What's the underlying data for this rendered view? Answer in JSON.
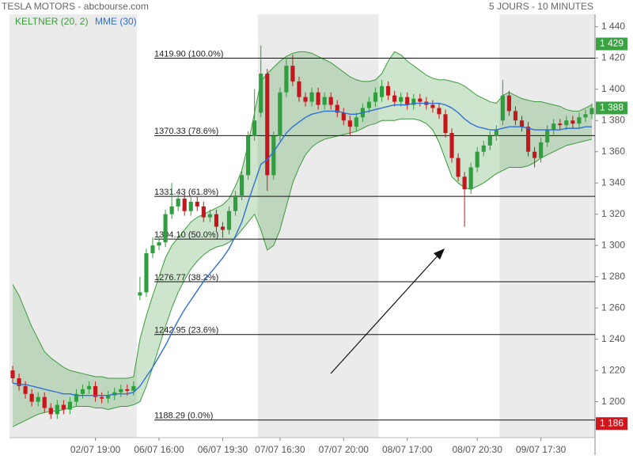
{
  "chart_data": {
    "type": "candlestick",
    "title": "TESLA MOTORS - abcbourse.com",
    "subtitle": "5 JOURS - 10 MINUTES",
    "categories": [
      null,
      null,
      null,
      null,
      null,
      null,
      null,
      null,
      null,
      null,
      null,
      null,
      null,
      "02/07 19:00",
      null,
      null,
      null,
      null,
      null,
      null,
      null,
      null,
      null,
      "06/07 16:00",
      null,
      null,
      null,
      null,
      null,
      null,
      null,
      null,
      null,
      "06/07 19:30",
      null,
      null,
      null,
      null,
      null,
      null,
      null,
      null,
      "07/07 16:30",
      null,
      null,
      null,
      null,
      null,
      null,
      null,
      null,
      null,
      "07/07 20:00",
      null,
      null,
      null,
      null,
      null,
      null,
      null,
      null,
      null,
      "08/07 17:00",
      null,
      null,
      null,
      null,
      null,
      null,
      null,
      null,
      null,
      null,
      "08/07 20:30",
      null,
      null,
      null,
      null,
      null,
      null,
      null,
      null,
      null,
      "09/07 17:30",
      null,
      null,
      null,
      null,
      null,
      null,
      null,
      null
    ],
    "candles": {
      "up_color": "#2e9e3e",
      "down_color": "#c4161c",
      "open": [
        1220,
        1215,
        1210,
        1205,
        1200,
        1203,
        1196,
        1192,
        1198,
        1195,
        1200,
        1205,
        1208,
        1210,
        1203,
        1202,
        1204,
        1206,
        1208,
        1207,
        1268,
        1270,
        1295,
        1300,
        1302,
        1320,
        1325,
        1330,
        1322,
        1328,
        1325,
        1318,
        1320,
        1312,
        1310,
        1322,
        1332,
        1345,
        1370,
        1385,
        1410,
        1345,
        1370,
        1398,
        1415,
        1405,
        1395,
        1392,
        1398,
        1390,
        1395,
        1390,
        1385,
        1380,
        1376,
        1382,
        1388,
        1392,
        1395,
        1402,
        1396,
        1392,
        1395,
        1390,
        1394,
        1392,
        1390,
        1388,
        1384,
        1372,
        1356,
        1344,
        1336,
        1350,
        1360,
        1364,
        1370,
        1380,
        1396,
        1386,
        1380,
        1376,
        1360,
        1356,
        1366,
        1374,
        1378,
        1377,
        1380,
        1378,
        1382,
        1384
      ],
      "high": [
        1223,
        1218,
        1213,
        1208,
        1206,
        1206,
        1199,
        1201,
        1201,
        1203,
        1208,
        1211,
        1213,
        1213,
        1206,
        1207,
        1209,
        1211,
        1211,
        1213,
        1280,
        1298,
        1305,
        1306,
        1323,
        1340,
        1333,
        1333,
        1331,
        1331,
        1328,
        1323,
        1323,
        1315,
        1325,
        1335,
        1348,
        1373,
        1400,
        1428,
        1413,
        1373,
        1401,
        1420,
        1422,
        1408,
        1398,
        1401,
        1401,
        1398,
        1398,
        1393,
        1388,
        1383,
        1385,
        1391,
        1395,
        1401,
        1406,
        1405,
        1399,
        1398,
        1398,
        1397,
        1397,
        1395,
        1393,
        1391,
        1387,
        1375,
        1359,
        1347,
        1353,
        1363,
        1367,
        1373,
        1377,
        1406,
        1399,
        1389,
        1383,
        1379,
        1363,
        1369,
        1377,
        1381,
        1381,
        1383,
        1383,
        1385,
        1387,
        1391
      ],
      "low": [
        1212,
        1207,
        1202,
        1197,
        1197,
        1193,
        1189,
        1189,
        1192,
        1192,
        1197,
        1202,
        1205,
        1200,
        1199,
        1199,
        1201,
        1203,
        1204,
        1204,
        1265,
        1267,
        1292,
        1297,
        1299,
        1317,
        1322,
        1319,
        1319,
        1322,
        1315,
        1315,
        1309,
        1305,
        1307,
        1319,
        1329,
        1342,
        1367,
        1382,
        1335,
        1342,
        1367,
        1395,
        1402,
        1392,
        1389,
        1389,
        1387,
        1387,
        1387,
        1382,
        1377,
        1370,
        1373,
        1379,
        1385,
        1389,
        1392,
        1393,
        1389,
        1389,
        1387,
        1387,
        1389,
        1387,
        1385,
        1381,
        1369,
        1353,
        1341,
        1312,
        1333,
        1347,
        1357,
        1361,
        1367,
        1377,
        1383,
        1377,
        1373,
        1357,
        1350,
        1353,
        1363,
        1371,
        1374,
        1374,
        1375,
        1375,
        1379,
        1381
      ],
      "close": [
        1215,
        1210,
        1205,
        1200,
        1203,
        1196,
        1192,
        1198,
        1195,
        1200,
        1205,
        1208,
        1210,
        1203,
        1202,
        1204,
        1206,
        1208,
        1207,
        1210,
        1270,
        1295,
        1300,
        1302,
        1320,
        1325,
        1330,
        1322,
        1328,
        1325,
        1318,
        1320,
        1312,
        1310,
        1322,
        1332,
        1345,
        1370,
        1380,
        1410,
        1345,
        1370,
        1398,
        1415,
        1405,
        1395,
        1392,
        1398,
        1390,
        1395,
        1390,
        1385,
        1380,
        1376,
        1382,
        1388,
        1392,
        1398,
        1402,
        1396,
        1392,
        1395,
        1390,
        1394,
        1392,
        1390,
        1388,
        1384,
        1372,
        1356,
        1344,
        1336,
        1350,
        1360,
        1364,
        1370,
        1374,
        1396,
        1386,
        1380,
        1376,
        1360,
        1356,
        1366,
        1374,
        1378,
        1377,
        1380,
        1378,
        1382,
        1384,
        1388
      ]
    },
    "keltner": {
      "name": "KELTNER (20, 2)",
      "color": "#3d9b3d",
      "fill": "rgba(76,160,76,0.28)",
      "upper": [
        1275,
        1268,
        1258,
        1248,
        1240,
        1232,
        1228,
        1225,
        1222,
        1220,
        1219,
        1218,
        1217,
        1216,
        1216,
        1215,
        1215,
        1215,
        1215,
        1216,
        1240,
        1255,
        1268,
        1280,
        1292,
        1300,
        1305,
        1310,
        1315,
        1318,
        1320,
        1322,
        1324,
        1326,
        1330,
        1338,
        1348,
        1365,
        1385,
        1405,
        1410,
        1414,
        1418,
        1421,
        1423,
        1424,
        1424,
        1423,
        1421,
        1419,
        1417,
        1414,
        1411,
        1408,
        1406,
        1405,
        1405,
        1406,
        1410,
        1418,
        1424,
        1422,
        1418,
        1415,
        1412,
        1409,
        1407,
        1406,
        1406,
        1405,
        1404,
        1402,
        1399,
        1396,
        1394,
        1392,
        1391,
        1396,
        1398,
        1396,
        1394,
        1393,
        1392,
        1392,
        1391,
        1390,
        1389,
        1387,
        1386,
        1386,
        1388,
        1390
      ],
      "lower": [
        1184,
        1186,
        1188,
        1190,
        1192,
        1193,
        1194,
        1194,
        1195,
        1196,
        1197,
        1197,
        1197,
        1196,
        1196,
        1195,
        1196,
        1197,
        1197,
        1198,
        1200,
        1210,
        1222,
        1235,
        1248,
        1260,
        1270,
        1278,
        1285,
        1290,
        1294,
        1297,
        1299,
        1300,
        1302,
        1305,
        1310,
        1315,
        1320,
        1310,
        1297,
        1300,
        1310,
        1325,
        1340,
        1350,
        1358,
        1363,
        1366,
        1368,
        1369,
        1370,
        1371,
        1372,
        1373,
        1375,
        1377,
        1378,
        1380,
        1380,
        1380,
        1381,
        1381,
        1381,
        1380,
        1378,
        1374,
        1366,
        1355,
        1344,
        1340,
        1337,
        1336,
        1338,
        1340,
        1343,
        1346,
        1348,
        1350,
        1350,
        1350,
        1351,
        1353,
        1356,
        1358,
        1360,
        1362,
        1364,
        1365,
        1366,
        1367,
        1368
      ]
    },
    "mme": {
      "name": "MME (30)",
      "color": "#2f6fd6",
      "values": [
        1212,
        1211,
        1211,
        1210,
        1209,
        1208,
        1207,
        1206,
        1205,
        1205,
        1204,
        1204,
        1204,
        1204,
        1204,
        1204,
        1205,
        1205,
        1205,
        1206,
        1210,
        1216,
        1222,
        1229,
        1236,
        1244,
        1252,
        1259,
        1265,
        1271,
        1277,
        1282,
        1287,
        1292,
        1298,
        1306,
        1315,
        1328,
        1340,
        1352,
        1355,
        1360,
        1366,
        1372,
        1376,
        1379,
        1382,
        1384,
        1385,
        1386,
        1386,
        1386,
        1385,
        1384,
        1384,
        1385,
        1386,
        1387,
        1388,
        1389,
        1390,
        1390,
        1390,
        1391,
        1391,
        1391,
        1391,
        1391,
        1390,
        1388,
        1385,
        1381,
        1378,
        1376,
        1375,
        1374,
        1374,
        1375,
        1376,
        1376,
        1376,
        1375,
        1374,
        1374,
        1374,
        1374,
        1374,
        1375,
        1375,
        1375,
        1376,
        1376
      ]
    },
    "fib_levels": [
      {
        "value": 1419.9,
        "label": "1419.90  (100.0%)"
      },
      {
        "value": 1370.33,
        "label": "1370.33  (78.6%)"
      },
      {
        "value": 1331.43,
        "label": "1331.43  (61.8%)"
      },
      {
        "value": 1304.1,
        "label": "1304.10  (50.0%)"
      },
      {
        "value": 1276.77,
        "label": "1276.77  (38.2%)"
      },
      {
        "value": 1242.95,
        "label": "1242.95  (23.6%)"
      },
      {
        "value": 1188.29,
        "label": "1188.29  (0.0%)"
      }
    ],
    "price_tags": [
      {
        "value": 1429,
        "label": "1 429",
        "color": "#3aa341"
      },
      {
        "value": 1388,
        "label": "1 388",
        "color": "#3aa341"
      },
      {
        "value": 1186,
        "label": "1 186",
        "color": "#d0161c"
      }
    ],
    "ylim": [
      1177,
      1448
    ],
    "yticks": [
      {
        "value": 1200,
        "label": "1 200"
      },
      {
        "value": 1220,
        "label": "1 220"
      },
      {
        "value": 1240,
        "label": "1 240"
      },
      {
        "value": 1260,
        "label": "1 260"
      },
      {
        "value": 1280,
        "label": "1 280"
      },
      {
        "value": 1300,
        "label": "1 300"
      },
      {
        "value": 1320,
        "label": "1 320"
      },
      {
        "value": 1340,
        "label": "1 340"
      },
      {
        "value": 1360,
        "label": "1 360"
      },
      {
        "value": 1380,
        "label": "1 380"
      },
      {
        "value": 1400,
        "label": "1 400"
      },
      {
        "value": 1420,
        "label": "1 420"
      },
      {
        "value": 1440,
        "label": "1 440"
      }
    ]
  }
}
